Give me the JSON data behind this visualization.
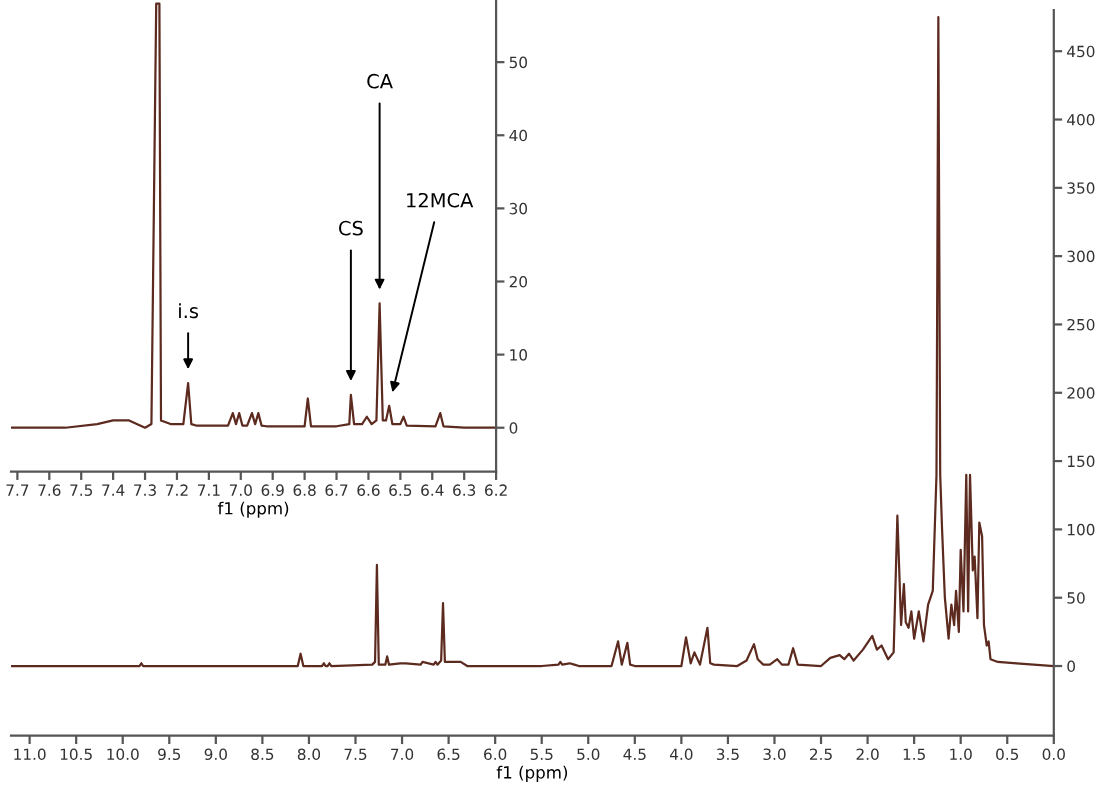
{
  "chart_data": [
    {
      "type": "line",
      "xlabel": "f1 (ppm)",
      "xlim": [
        11.2,
        0.0
      ],
      "ylim": [
        -51,
        480
      ],
      "xticks": [
        {
          "value": 11,
          "label": "11.0"
        },
        10.5,
        {
          "value": 10,
          "label": "10.0"
        },
        9.5,
        {
          "value": 9,
          "label": "9.0"
        },
        8.5,
        {
          "value": 8,
          "label": "8.0"
        },
        7.5,
        {
          "value": 7,
          "label": "7.0"
        },
        6.5,
        {
          "value": 6,
          "label": "6.0"
        },
        5.5,
        {
          "value": 5,
          "label": "5.0"
        },
        4.5,
        {
          "value": 4,
          "label": "4.0"
        },
        3.5,
        {
          "value": 3,
          "label": "3.0"
        },
        2.5,
        {
          "value": 2,
          "label": "2.0"
        },
        1.5,
        {
          "value": 1,
          "label": "1.0"
        },
        0.5,
        {
          "value": 0,
          "label": "0.0"
        }
      ],
      "yticks": [
        0,
        50,
        100,
        150,
        200,
        250,
        300,
        350,
        400,
        450
      ],
      "grid": false,
      "legend": false,
      "marker": "none",
      "line_style": "solid",
      "series": [
        {
          "color": "#5c2a1e",
          "x": [
            11.2,
            10.3,
            9.82,
            9.8,
            9.78,
            8.12,
            8.09,
            8.06,
            7.86,
            7.84,
            7.82,
            7.8,
            7.78,
            7.76,
            7.32,
            7.29,
            7.27,
            7.25,
            7.18,
            7.16,
            7.14,
            7.02,
            6.96,
            6.8,
            6.78,
            6.66,
            6.64,
            6.62,
            6.58,
            6.56,
            6.54,
            6.5,
            6.37,
            6.3,
            5.5,
            5.32,
            5.3,
            5.28,
            5.2,
            5.15,
            5.1,
            4.75,
            4.68,
            4.64,
            4.58,
            4.55,
            4.5,
            4.0,
            3.95,
            3.9,
            3.86,
            3.8,
            3.72,
            3.69,
            3.65,
            3.4,
            3.3,
            3.22,
            3.18,
            3.12,
            3.05,
            2.97,
            2.92,
            2.85,
            2.8,
            2.75,
            2.5,
            2.4,
            2.3,
            2.25,
            2.2,
            2.15,
            2.05,
            1.95,
            1.9,
            1.85,
            1.78,
            1.72,
            1.68,
            1.64,
            1.61,
            1.59,
            1.56,
            1.53,
            1.5,
            1.45,
            1.4,
            1.35,
            1.3,
            1.26,
            1.24,
            1.22,
            1.2,
            1.17,
            1.13,
            1.1,
            1.07,
            1.05,
            1.02,
            1.0,
            0.97,
            0.94,
            0.92,
            0.9,
            0.87,
            0.85,
            0.82,
            0.8,
            0.77,
            0.75,
            0.72,
            0.7,
            0.68,
            0.6,
            0.4,
            0.0
          ],
          "values": [
            0,
            0,
            0,
            2,
            0,
            0,
            9,
            0,
            0,
            2,
            0,
            0,
            2,
            0,
            1,
            3,
            74,
            1,
            1,
            7,
            1,
            2,
            2,
            1,
            3,
            1,
            3,
            1,
            4,
            46,
            3,
            3,
            3,
            0,
            0,
            1,
            3,
            1,
            2,
            1,
            0,
            0,
            18,
            1,
            17,
            1,
            0,
            0,
            21,
            2,
            10,
            1,
            28,
            2,
            1,
            0,
            4,
            16,
            5,
            1,
            1,
            5,
            1,
            1,
            13,
            1,
            0,
            6,
            8,
            5,
            9,
            4,
            12,
            22,
            12,
            15,
            5,
            10,
            110,
            30,
            60,
            32,
            28,
            40,
            20,
            40,
            18,
            45,
            55,
            140,
            475,
            140,
            100,
            50,
            20,
            45,
            30,
            55,
            25,
            85,
            40,
            140,
            40,
            140,
            70,
            80,
            35,
            105,
            95,
            30,
            15,
            18,
            5,
            3,
            2,
            0
          ]
        }
      ]
    },
    {
      "type": "line",
      "xlabel": "f1 (ppm)",
      "xlim": [
        7.72,
        6.2
      ],
      "ylim": [
        -6,
        58.5
      ],
      "xticks": [
        7.7,
        7.6,
        7.5,
        7.4,
        7.3,
        7.2,
        7.1,
        {
          "value": 7,
          "label": "7.0"
        },
        6.9,
        6.8,
        6.7,
        6.6,
        6.5,
        6.4,
        6.3,
        6.2
      ],
      "yticks": [
        0,
        10,
        20,
        30,
        40,
        50
      ],
      "grid": false,
      "legend": false,
      "marker": "none",
      "line_style": "solid",
      "annotations": [
        {
          "text": "i.s",
          "x": 7.165,
          "y": 6.1
        },
        {
          "text": "CS",
          "x": 6.655,
          "y": 4.5
        },
        {
          "text": "CA",
          "x": 6.565,
          "y": 17
        },
        {
          "text": "12MCA",
          "x": 6.535,
          "y": 3
        }
      ],
      "series": [
        {
          "color": "#5c2a1e",
          "x": [
            7.72,
            7.55,
            7.45,
            7.4,
            7.35,
            7.3,
            7.28,
            7.265,
            7.255,
            7.25,
            7.22,
            7.18,
            7.165,
            7.155,
            7.14,
            7.1,
            7.04,
            7.025,
            7.015,
            7.005,
            6.995,
            6.98,
            6.965,
            6.955,
            6.945,
            6.935,
            6.92,
            6.8,
            6.79,
            6.78,
            6.7,
            6.66,
            6.655,
            6.645,
            6.62,
            6.605,
            6.59,
            6.575,
            6.565,
            6.555,
            6.545,
            6.535,
            6.525,
            6.5,
            6.49,
            6.48,
            6.39,
            6.375,
            6.365,
            6.3,
            6.2
          ],
          "values": [
            0,
            0,
            0.5,
            1,
            1,
            0,
            0.5,
            58,
            58,
            1,
            0.5,
            0.5,
            6.1,
            0.5,
            0.3,
            0.3,
            0.3,
            2,
            0.5,
            2,
            0.3,
            0.3,
            2,
            0.5,
            2,
            0.3,
            0.2,
            0.2,
            4,
            0.2,
            0.2,
            0.5,
            4.5,
            0.5,
            0.5,
            1.5,
            0.5,
            1,
            17,
            1,
            1,
            3,
            0.5,
            0.5,
            1.5,
            0.3,
            0.2,
            2,
            0.2,
            0,
            0
          ]
        }
      ]
    }
  ]
}
